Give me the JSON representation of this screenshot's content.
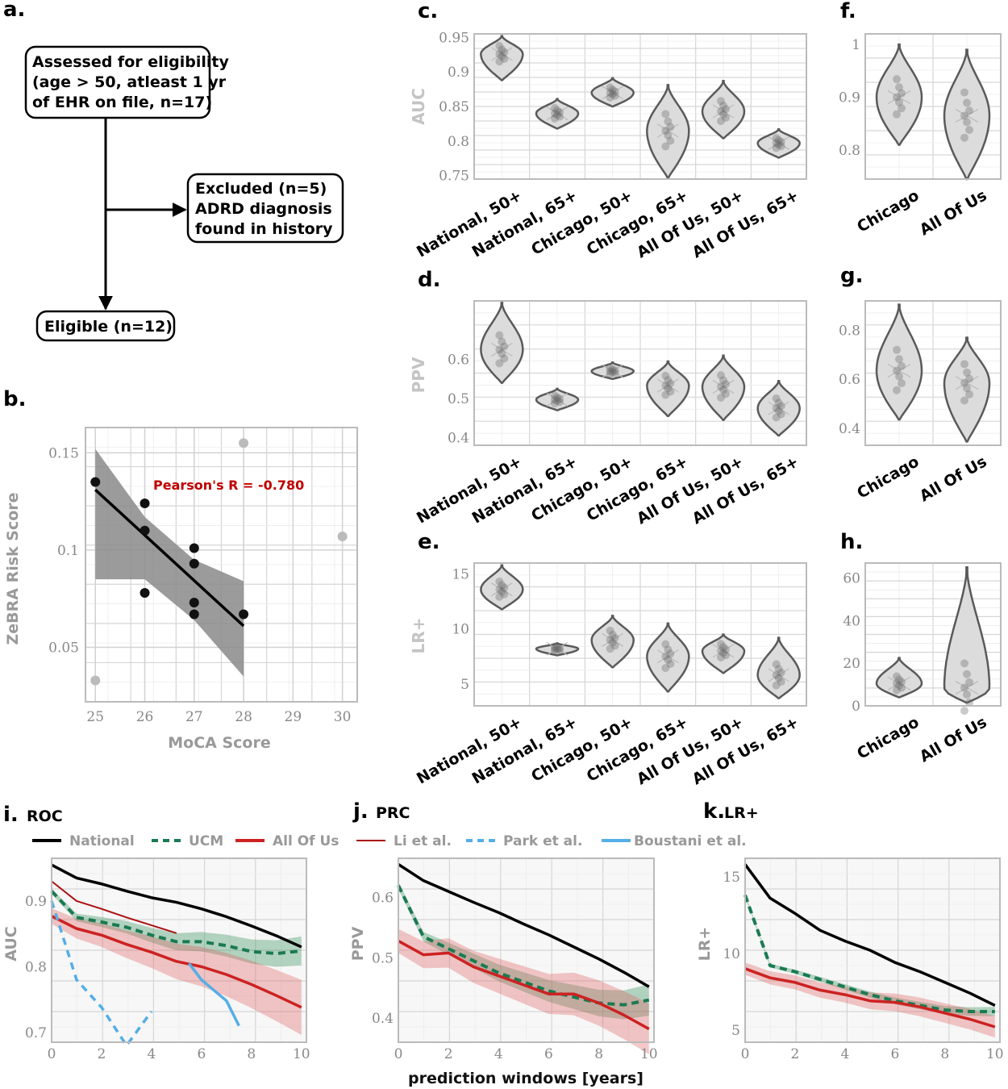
{
  "panels": {
    "a": "a.",
    "b": "b.",
    "c": "c.",
    "d": "d.",
    "e": "e.",
    "f": "f.",
    "g": "g.",
    "h": "h.",
    "i": "i.",
    "j": "j.",
    "k": "k."
  },
  "subtitles": {
    "i": "ROC",
    "j": "PRC",
    "k": "LR+"
  },
  "flowchart": {
    "assessed": [
      "Assessed for eligibility",
      "(age > 50, atleast 1 yr",
      "of EHR on file, n=17)"
    ],
    "excluded": [
      "Excluded (n=5)",
      "ADRD diagnosis",
      "found in history"
    ],
    "eligible": "Eligible (n=12)"
  },
  "correlation": {
    "annotation": "Pearson's R = -0.780",
    "ylabel": "ZeBRA Risk Score",
    "xlabel": "MoCA Score",
    "xticks": [
      "25",
      "26",
      "27",
      "28",
      "29",
      "30"
    ],
    "yticks": [
      "0.15",
      "0.1",
      "0.05"
    ]
  },
  "labels": {
    "auc": "AUC",
    "ppv": "PPV",
    "lr": "LR+",
    "prediction_windows": "prediction windows [years]"
  },
  "categories6": [
    "National, 50+",
    "National, 65+",
    "Chicago, 50+",
    "Chicago, 65+",
    "All Of Us, 50+",
    "All Of Us, 65+"
  ],
  "categories2": [
    "Chicago",
    "All Of Us"
  ],
  "legend": [
    "National",
    "UCM",
    "All Of Us",
    "Li et al.",
    "Park et al.",
    "Boustani et al."
  ],
  "colors": {
    "national": "#000000",
    "ucm": "#1a7a52",
    "allofus": "#cc2222",
    "li": "#aa1111",
    "park": "#55aee6",
    "boustani": "#55aee6"
  },
  "chart_data": [
    {
      "panel": "b",
      "type": "scatter",
      "xlabel": "MoCA Score",
      "ylabel": "ZeBRA Risk Score",
      "xlim": [
        24.8,
        30.3
      ],
      "ylim": [
        0.022,
        0.163
      ],
      "points_included": [
        [
          25,
          0.135
        ],
        [
          26,
          0.124
        ],
        [
          26,
          0.11
        ],
        [
          26,
          0.078
        ],
        [
          27,
          0.101
        ],
        [
          27,
          0.093
        ],
        [
          27,
          0.073
        ],
        [
          27,
          0.067
        ],
        [
          28,
          0.067
        ]
      ],
      "points_excluded": [
        [
          25,
          0.033
        ],
        [
          28,
          0.155
        ],
        [
          30,
          0.107
        ]
      ],
      "fit_line": [
        [
          25,
          0.131
        ],
        [
          28,
          0.061
        ]
      ],
      "ci_band_upper": [
        [
          25,
          0.152
        ],
        [
          26,
          0.117
        ],
        [
          27,
          0.095
        ],
        [
          28,
          0.084
        ]
      ],
      "ci_band_lower": [
        [
          25,
          0.085
        ],
        [
          26,
          0.085
        ],
        [
          27,
          0.064
        ],
        [
          28,
          0.035
        ]
      ],
      "annotation": "Pearson's R = -0.780",
      "grid": true
    },
    {
      "panel": "c",
      "type": "violin",
      "ylabel": "AUC",
      "ylim": [
        0.745,
        0.955
      ],
      "yticks": [
        0.75,
        0.8,
        0.85,
        0.9,
        0.95
      ],
      "categories": [
        "National, 50+",
        "National, 65+",
        "Chicago, 50+",
        "Chicago, 65+",
        "All Of Us, 50+",
        "All Of Us, 65+"
      ],
      "medians": [
        0.926,
        0.84,
        0.87,
        0.815,
        0.843,
        0.797
      ],
      "range": [
        [
          0.888,
          0.952
        ],
        [
          0.818,
          0.861
        ],
        [
          0.85,
          0.891
        ],
        [
          0.747,
          0.881
        ],
        [
          0.804,
          0.887
        ],
        [
          0.776,
          0.817
        ]
      ]
    },
    {
      "panel": "d",
      "type": "violin",
      "ylabel": "PPV",
      "ylim": [
        0.38,
        0.75
      ],
      "yticks": [
        0.4,
        0.5,
        0.6
      ],
      "categories": [
        "National, 50+",
        "National, 65+",
        "Chicago, 50+",
        "Chicago, 65+",
        "All Of Us, 50+",
        "All Of Us, 65+"
      ],
      "medians": [
        0.625,
        0.497,
        0.57,
        0.533,
        0.53,
        0.475
      ],
      "range": [
        [
          0.54,
          0.745
        ],
        [
          0.47,
          0.525
        ],
        [
          0.55,
          0.592
        ],
        [
          0.455,
          0.595
        ],
        [
          0.445,
          0.61
        ],
        [
          0.405,
          0.545
        ]
      ]
    },
    {
      "panel": "e",
      "type": "violin",
      "ylabel": "LR+",
      "ylim": [
        3.0,
        16.0
      ],
      "yticks": [
        5,
        10,
        15
      ],
      "categories": [
        "National, 50+",
        "National, 65+",
        "Chicago, 50+",
        "Chicago, 65+",
        "All Of Us, 50+",
        "All Of Us, 65+"
      ],
      "medians": [
        13.6,
        8.2,
        9.0,
        7.5,
        8.0,
        5.8
      ],
      "range": [
        [
          11.8,
          15.8
        ],
        [
          7.6,
          8.7
        ],
        [
          6.5,
          11.2
        ],
        [
          4.3,
          10.5
        ],
        [
          6.0,
          9.5
        ],
        [
          3.7,
          9.2
        ]
      ]
    },
    {
      "panel": "f",
      "type": "violin",
      "ylim": [
        0.745,
        1.02
      ],
      "yticks": [
        0.8,
        0.9,
        1
      ],
      "categories": [
        "Chicago",
        "All Of Us"
      ],
      "medians": [
        0.9,
        0.865
      ],
      "range": [
        [
          0.81,
          1.0
        ],
        [
          0.745,
          0.99
        ]
      ]
    },
    {
      "panel": "g",
      "type": "violin",
      "ylim": [
        0.33,
        0.92
      ],
      "yticks": [
        0.4,
        0.6,
        0.8
      ],
      "categories": [
        "Chicago",
        "All Of Us"
      ],
      "medians": [
        0.635,
        0.585
      ],
      "range": [
        [
          0.435,
          0.905
        ],
        [
          0.345,
          0.77
        ]
      ]
    },
    {
      "panel": "h",
      "type": "violin",
      "ylim": [
        0,
        67
      ],
      "yticks": [
        0,
        20,
        40,
        60
      ],
      "categories": [
        "Chicago",
        "All Of Us"
      ],
      "medians": [
        10.5,
        8.5
      ],
      "range": [
        [
          4.0,
          22.5
        ],
        [
          1.5,
          65.0
        ]
      ]
    },
    {
      "panel": "i",
      "type": "line",
      "title": "ROC",
      "xlabel": "",
      "ylabel": "AUC",
      "xlim": [
        0,
        10.2
      ],
      "ylim": [
        0.685,
        0.965
      ],
      "series": [
        {
          "name": "National",
          "x": [
            0,
            1,
            2,
            3,
            4,
            5,
            6,
            7,
            8,
            9,
            10
          ],
          "y": [
            0.955,
            0.935,
            0.926,
            0.915,
            0.905,
            0.898,
            0.888,
            0.876,
            0.862,
            0.847,
            0.83
          ]
        },
        {
          "name": "UCM",
          "x": [
            0,
            1,
            2,
            3,
            4,
            5,
            6,
            7,
            8,
            9,
            10
          ],
          "y": [
            0.915,
            0.875,
            0.868,
            0.86,
            0.848,
            0.838,
            0.838,
            0.832,
            0.823,
            0.82,
            0.824
          ]
        },
        {
          "name": "All Of Us",
          "x": [
            0,
            1,
            2,
            3,
            4,
            5,
            6,
            7,
            8,
            9,
            10
          ],
          "y": [
            0.877,
            0.858,
            0.848,
            0.834,
            0.822,
            0.808,
            0.8,
            0.788,
            0.773,
            0.756,
            0.738
          ]
        },
        {
          "name": "Li et al.",
          "x": [
            0,
            1,
            2,
            3,
            4,
            5
          ],
          "y": [
            0.93,
            0.9,
            0.888,
            0.875,
            0.863,
            0.851
          ]
        },
        {
          "name": "Park et al.",
          "x": [
            0,
            1,
            2,
            3,
            4
          ],
          "y": [
            0.9,
            0.78,
            0.738,
            0.68,
            0.732
          ]
        },
        {
          "name": "Boustani et al.",
          "x": [
            5.5,
            6,
            7,
            7.5
          ],
          "y": [
            0.805,
            0.78,
            0.748,
            0.71
          ]
        }
      ]
    },
    {
      "panel": "j",
      "type": "line",
      "title": "PRC",
      "xlabel": "prediction windows [years]",
      "ylabel": "PPV",
      "xlim": [
        0,
        10.2
      ],
      "ylim": [
        0.36,
        0.665
      ],
      "series": [
        {
          "name": "National",
          "x": [
            0,
            1,
            2,
            3,
            4,
            5,
            6,
            7,
            8,
            9,
            10
          ],
          "y": [
            0.655,
            0.628,
            0.61,
            0.592,
            0.575,
            0.556,
            0.538,
            0.518,
            0.498,
            0.476,
            0.452
          ]
        },
        {
          "name": "UCM",
          "x": [
            0,
            1,
            2,
            3,
            4,
            5,
            6,
            7,
            8,
            9,
            10
          ],
          "y": [
            0.62,
            0.535,
            0.515,
            0.495,
            0.475,
            0.46,
            0.445,
            0.435,
            0.425,
            0.422,
            0.43
          ]
        },
        {
          "name": "All Of Us",
          "x": [
            0,
            1,
            2,
            3,
            4,
            5,
            6,
            7,
            8,
            9,
            10
          ],
          "y": [
            0.528,
            0.505,
            0.508,
            0.485,
            0.47,
            0.455,
            0.44,
            0.44,
            0.425,
            0.405,
            0.382
          ]
        }
      ]
    },
    {
      "panel": "k",
      "type": "line",
      "title": "LR+",
      "xlabel": "",
      "ylabel": "LR+",
      "xlim": [
        0,
        10.2
      ],
      "ylim": [
        4.2,
        16.2
      ],
      "series": [
        {
          "name": "National",
          "x": [
            0,
            1,
            2,
            3,
            4,
            5,
            6,
            7,
            8,
            9,
            10
          ],
          "y": [
            15.8,
            13.6,
            12.6,
            11.5,
            10.8,
            10.2,
            9.4,
            8.8,
            8.1,
            7.4,
            6.6
          ]
        },
        {
          "name": "UCM",
          "x": [
            0,
            1,
            2,
            3,
            4,
            5,
            6,
            7,
            8,
            9,
            10
          ],
          "y": [
            13.8,
            9.2,
            8.8,
            8.3,
            7.8,
            7.3,
            6.9,
            6.6,
            6.3,
            6.2,
            6.2
          ]
        },
        {
          "name": "All Of Us",
          "x": [
            0,
            1,
            2,
            3,
            4,
            5,
            6,
            7,
            8,
            9,
            10
          ],
          "y": [
            9.0,
            8.4,
            8.1,
            7.6,
            7.3,
            6.9,
            6.8,
            6.5,
            6.1,
            5.7,
            5.2
          ]
        }
      ]
    }
  ]
}
